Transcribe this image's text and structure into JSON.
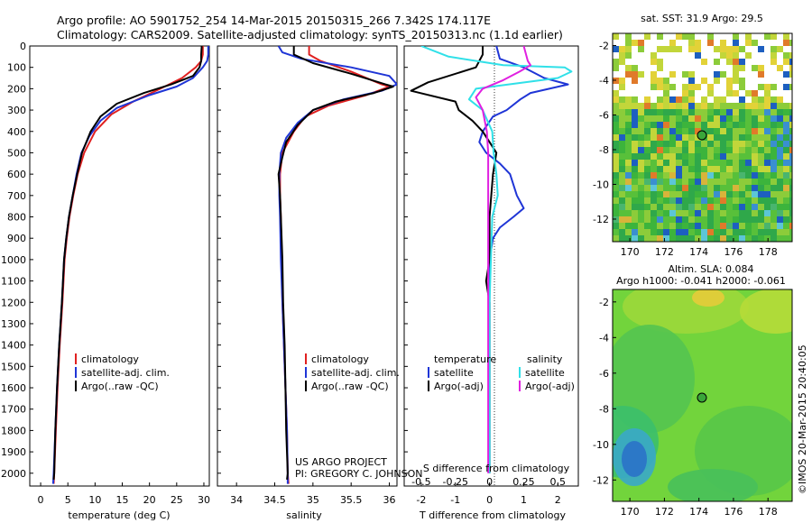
{
  "header": {
    "line1": "Argo profile: AO 5901752_254 14-Mar-2015 20150315_266 7.342S 174.117E",
    "line2": "Climatology: CARS2009. Satellite-adjusted climatology: synTS_20150313.nc (1.1d earlier)"
  },
  "colors": {
    "climatology": "#e02020",
    "satellite": "#1f35d6",
    "argo": "#000000",
    "sal_satellite": "#30e0e8",
    "sal_argo": "#e020e0"
  },
  "panel_temp": {
    "xlabel": "temperature (deg C)",
    "legend": [
      "climatology",
      "satellite-adj. clim.",
      "Argo(..raw -QC)"
    ]
  },
  "panel_sal": {
    "xlabel": "salinity",
    "legend": [
      "climatology",
      "satellite-adj. clim.",
      "Argo(..raw -QC)"
    ],
    "credit1": "US ARGO PROJECT",
    "credit2": "PI: GREGORY C. JOHNSON"
  },
  "panel_diff": {
    "xlabel_top": "S difference from climatology",
    "xlabel_bottom": "T difference from climatology",
    "legend_head_t": "temperature",
    "legend_head_s": "salinity",
    "legend_t": [
      "satellite",
      "Argo(-adj)"
    ],
    "legend_s": [
      "satellite",
      "Argo(-adj)"
    ]
  },
  "map_sst": {
    "title": "sat. SST: 31.9 Argo: 29.5",
    "xticks": [
      "170",
      "172",
      "174",
      "176",
      "178"
    ],
    "yticks": [
      "-2",
      "-4",
      "-6",
      "-8",
      "-10",
      "-12"
    ]
  },
  "map_sla": {
    "title1": "Altim. SLA: 0.084",
    "title2": "Argo h1000: -0.041 h2000: -0.061",
    "xticks": [
      "170",
      "172",
      "174",
      "176",
      "178"
    ],
    "yticks": [
      "-2",
      "-4",
      "-6",
      "-8",
      "-10",
      "-12"
    ]
  },
  "side_label": "©IMOS 20-Mar-2015 20:40:05",
  "chart_data": [
    {
      "type": "line",
      "name": "temperature profile",
      "xlabel": "temperature (deg C)",
      "ylabel": "",
      "xlim": [
        -2,
        31
      ],
      "ylim": [
        2060,
        0
      ],
      "xticks": [
        0,
        5,
        10,
        15,
        20,
        25,
        30
      ],
      "yticks": [
        0,
        100,
        200,
        300,
        400,
        500,
        600,
        700,
        800,
        900,
        1000,
        1100,
        1200,
        1300,
        1400,
        1500,
        1600,
        1700,
        1800,
        1900,
        2000
      ],
      "series": [
        {
          "name": "climatology",
          "points": [
            [
              29.8,
              0
            ],
            [
              29.8,
              40
            ],
            [
              29.5,
              70
            ],
            [
              28.5,
              100
            ],
            [
              26,
              150
            ],
            [
              22,
              200
            ],
            [
              17,
              260
            ],
            [
              13,
              320
            ],
            [
              10,
              400
            ],
            [
              8,
              500
            ],
            [
              6.8,
              600
            ],
            [
              6,
              700
            ],
            [
              5.3,
              800
            ],
            [
              4.8,
              900
            ],
            [
              4.4,
              1000
            ],
            [
              4,
              1200
            ],
            [
              3.5,
              1400
            ],
            [
              3.1,
              1600
            ],
            [
              2.8,
              1800
            ],
            [
              2.5,
              2000
            ],
            [
              2.4,
              2050
            ]
          ]
        },
        {
          "name": "satellite-adj. clim.",
          "points": [
            [
              30.8,
              0
            ],
            [
              30.8,
              40
            ],
            [
              30.6,
              70
            ],
            [
              29.8,
              100
            ],
            [
              28,
              150
            ],
            [
              25,
              190
            ],
            [
              20,
              230
            ],
            [
              14,
              290
            ],
            [
              11,
              350
            ],
            [
              9,
              420
            ],
            [
              7.5,
              500
            ],
            [
              6.6,
              600
            ],
            [
              5.9,
              700
            ],
            [
              5.2,
              800
            ],
            [
              4.7,
              900
            ],
            [
              4.3,
              1000
            ],
            [
              3.9,
              1200
            ],
            [
              3.4,
              1400
            ],
            [
              3.0,
              1600
            ],
            [
              2.7,
              1800
            ],
            [
              2.4,
              2000
            ],
            [
              2.3,
              2050
            ]
          ]
        },
        {
          "name": "Argo(..raw -QC)",
          "points": [
            [
              29.6,
              0
            ],
            [
              29.5,
              40
            ],
            [
              29.5,
              70
            ],
            [
              29.2,
              100
            ],
            [
              28,
              140
            ],
            [
              24,
              180
            ],
            [
              19,
              220
            ],
            [
              14,
              270
            ],
            [
              11,
              330
            ],
            [
              9.2,
              400
            ],
            [
              7.6,
              500
            ],
            [
              6.7,
              600
            ],
            [
              5.9,
              700
            ],
            [
              5.2,
              800
            ],
            [
              4.7,
              900
            ],
            [
              4.3,
              1000
            ],
            [
              3.9,
              1200
            ],
            [
              3.4,
              1400
            ],
            [
              3.0,
              1600
            ],
            [
              2.7,
              1800
            ],
            [
              2.5,
              2000
            ],
            [
              2.4,
              2030
            ]
          ]
        }
      ]
    },
    {
      "type": "line",
      "name": "salinity profile",
      "xlabel": "salinity",
      "ylabel": "",
      "xlim": [
        33.75,
        36.1
      ],
      "ylim": [
        2060,
        0
      ],
      "xticks": [
        34,
        34.5,
        35,
        35.5,
        36
      ],
      "series": [
        {
          "name": "climatology",
          "points": [
            [
              34.95,
              0
            ],
            [
              34.95,
              40
            ],
            [
              35.1,
              70
            ],
            [
              35.5,
              120
            ],
            [
              35.9,
              180
            ],
            [
              36.0,
              190
            ],
            [
              35.7,
              230
            ],
            [
              35.2,
              280
            ],
            [
              34.9,
              330
            ],
            [
              34.75,
              400
            ],
            [
              34.6,
              500
            ],
            [
              34.57,
              600
            ],
            [
              34.57,
              700
            ],
            [
              34.58,
              800
            ],
            [
              34.59,
              1000
            ],
            [
              34.6,
              1200
            ],
            [
              34.62,
              1400
            ],
            [
              34.64,
              1600
            ],
            [
              34.66,
              1800
            ],
            [
              34.67,
              2000
            ],
            [
              34.68,
              2050
            ]
          ]
        },
        {
          "name": "satellite-adj. clim.",
          "points": [
            [
              34.55,
              0
            ],
            [
              34.6,
              30
            ],
            [
              34.85,
              60
            ],
            [
              35.5,
              100
            ],
            [
              36.0,
              140
            ],
            [
              36.1,
              180
            ],
            [
              35.9,
              210
            ],
            [
              35.4,
              250
            ],
            [
              35.0,
              300
            ],
            [
              34.8,
              360
            ],
            [
              34.65,
              430
            ],
            [
              34.58,
              500
            ],
            [
              34.56,
              600
            ],
            [
              34.56,
              700
            ],
            [
              34.57,
              800
            ],
            [
              34.58,
              1000
            ],
            [
              34.6,
              1200
            ],
            [
              34.62,
              1400
            ],
            [
              34.64,
              1600
            ],
            [
              34.66,
              1800
            ],
            [
              34.67,
              2000
            ],
            [
              34.67,
              2050
            ]
          ]
        },
        {
          "name": "Argo(..raw -QC)",
          "points": [
            [
              34.75,
              0
            ],
            [
              34.75,
              40
            ],
            [
              35.0,
              80
            ],
            [
              35.5,
              130
            ],
            [
              35.95,
              180
            ],
            [
              36.05,
              190
            ],
            [
              35.8,
              220
            ],
            [
              35.3,
              260
            ],
            [
              35.0,
              300
            ],
            [
              34.8,
              370
            ],
            [
              34.65,
              450
            ],
            [
              34.6,
              520
            ],
            [
              34.55,
              600
            ],
            [
              34.57,
              700
            ],
            [
              34.58,
              800
            ],
            [
              34.6,
              1000
            ],
            [
              34.61,
              1200
            ],
            [
              34.63,
              1400
            ],
            [
              34.64,
              1600
            ],
            [
              34.65,
              1800
            ],
            [
              34.67,
              2000
            ],
            [
              34.66,
              2030
            ]
          ]
        }
      ]
    },
    {
      "type": "line",
      "name": "difference from climatology",
      "xlabel_top": "S difference from climatology",
      "xlabel_bottom": "T difference from climatology",
      "xlim_T": [
        -2.5,
        2.6
      ],
      "xticks_T": [
        -2,
        -1,
        0,
        1,
        2
      ],
      "xticks_S": [
        -0.5,
        -0.25,
        0,
        0.25,
        0.5
      ],
      "ylim": [
        2060,
        0
      ],
      "series": [
        {
          "name": "temperature satellite",
          "points": [
            [
              0.2,
              0
            ],
            [
              0.3,
              60
            ],
            [
              1.0,
              100
            ],
            [
              1.6,
              150
            ],
            [
              2.3,
              180
            ],
            [
              1.2,
              220
            ],
            [
              0.9,
              250
            ],
            [
              0.5,
              300
            ],
            [
              0.1,
              330
            ],
            [
              -0.2,
              400
            ],
            [
              -0.3,
              450
            ],
            [
              -0.1,
              500
            ],
            [
              0.3,
              550
            ],
            [
              0.6,
              600
            ],
            [
              0.8,
              700
            ],
            [
              1.0,
              760
            ],
            [
              0.7,
              800
            ],
            [
              0.3,
              850
            ],
            [
              0.1,
              900
            ],
            [
              0,
              1000
            ],
            [
              0,
              1200
            ],
            [
              0,
              1400
            ],
            [
              0,
              1600
            ],
            [
              0,
              1800
            ],
            [
              0,
              2000
            ]
          ]
        },
        {
          "name": "temperature Argo(-adj)",
          "points": [
            [
              -0.2,
              0
            ],
            [
              -0.2,
              40
            ],
            [
              -0.4,
              100
            ],
            [
              -1.8,
              170
            ],
            [
              -2.3,
              210
            ],
            [
              -1.0,
              260
            ],
            [
              -0.9,
              300
            ],
            [
              -0.5,
              350
            ],
            [
              -0.2,
              400
            ],
            [
              0,
              450
            ],
            [
              0.2,
              500
            ],
            [
              0.1,
              600
            ],
            [
              0,
              800
            ],
            [
              0,
              1000
            ],
            [
              -0.1,
              1100
            ],
            [
              0,
              1200
            ],
            [
              0,
              1400
            ],
            [
              0,
              1600
            ],
            [
              0,
              1800
            ],
            [
              0,
              2000
            ]
          ]
        },
        {
          "name": "salinity satellite",
          "points": [
            [
              -0.5,
              0
            ],
            [
              -0.3,
              50
            ],
            [
              0.1,
              90
            ],
            [
              0.55,
              100
            ],
            [
              0.6,
              120
            ],
            [
              0.5,
              150
            ],
            [
              -0.1,
              200
            ],
            [
              -0.15,
              250
            ],
            [
              -0.05,
              300
            ],
            [
              0.02,
              400
            ],
            [
              0.03,
              500
            ],
            [
              0.05,
              600
            ],
            [
              0.06,
              700
            ],
            [
              0.02,
              800
            ],
            [
              0.01,
              1000
            ],
            [
              0,
              1200
            ],
            [
              0,
              1400
            ],
            [
              0,
              1600
            ],
            [
              0,
              1800
            ],
            [
              0,
              2000
            ]
          ]
        },
        {
          "name": "salinity Argo(-adj)",
          "points": [
            [
              0.25,
              0
            ],
            [
              0.28,
              70
            ],
            [
              0.3,
              90
            ],
            [
              0.22,
              120
            ],
            [
              0.1,
              160
            ],
            [
              -0.05,
              200
            ],
            [
              -0.1,
              240
            ],
            [
              -0.05,
              300
            ],
            [
              -0.02,
              400
            ],
            [
              -0.01,
              500
            ],
            [
              -0.01,
              700
            ],
            [
              -0.01,
              1000
            ],
            [
              -0.01,
              1400
            ],
            [
              -0.01,
              1800
            ],
            [
              -0.01,
              2000
            ]
          ]
        }
      ]
    }
  ]
}
